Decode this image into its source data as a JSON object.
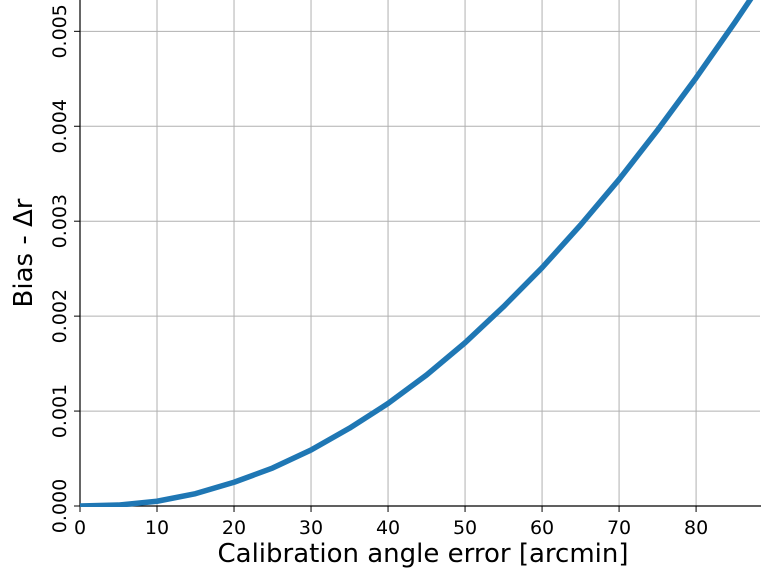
{
  "chart_data": {
    "type": "line",
    "xlabel": "Calibration angle error [arcmin]",
    "ylabel": "Bias - Δr",
    "x": [
      0,
      5,
      10,
      15,
      20,
      25,
      30,
      35,
      40,
      45,
      50,
      55,
      60,
      65,
      70,
      75,
      80,
      85,
      88
    ],
    "series": [
      {
        "name": "Bias",
        "color": "#1f77b4",
        "values": [
          0,
          1e-05,
          5e-05,
          0.00013,
          0.00025,
          0.0004,
          0.00059,
          0.00082,
          0.00108,
          0.00138,
          0.00172,
          0.0021,
          0.00251,
          0.00296,
          0.00344,
          0.00396,
          0.00451,
          0.00509,
          0.00545
        ]
      }
    ],
    "xlim": [
      0,
      88.3
    ],
    "ylim": [
      0,
      0.00533
    ],
    "xticks": [
      0,
      10,
      20,
      30,
      40,
      50,
      60,
      70,
      80
    ],
    "yticks": [
      {
        "value": 0,
        "label": "0.000"
      },
      {
        "value": 0.001,
        "label": "0.001"
      },
      {
        "value": 0.002,
        "label": "0.002"
      },
      {
        "value": 0.003,
        "label": "0.003"
      },
      {
        "value": 0.004,
        "label": "0.004"
      },
      {
        "value": 0.005,
        "label": "0.005"
      }
    ],
    "grid": true
  }
}
